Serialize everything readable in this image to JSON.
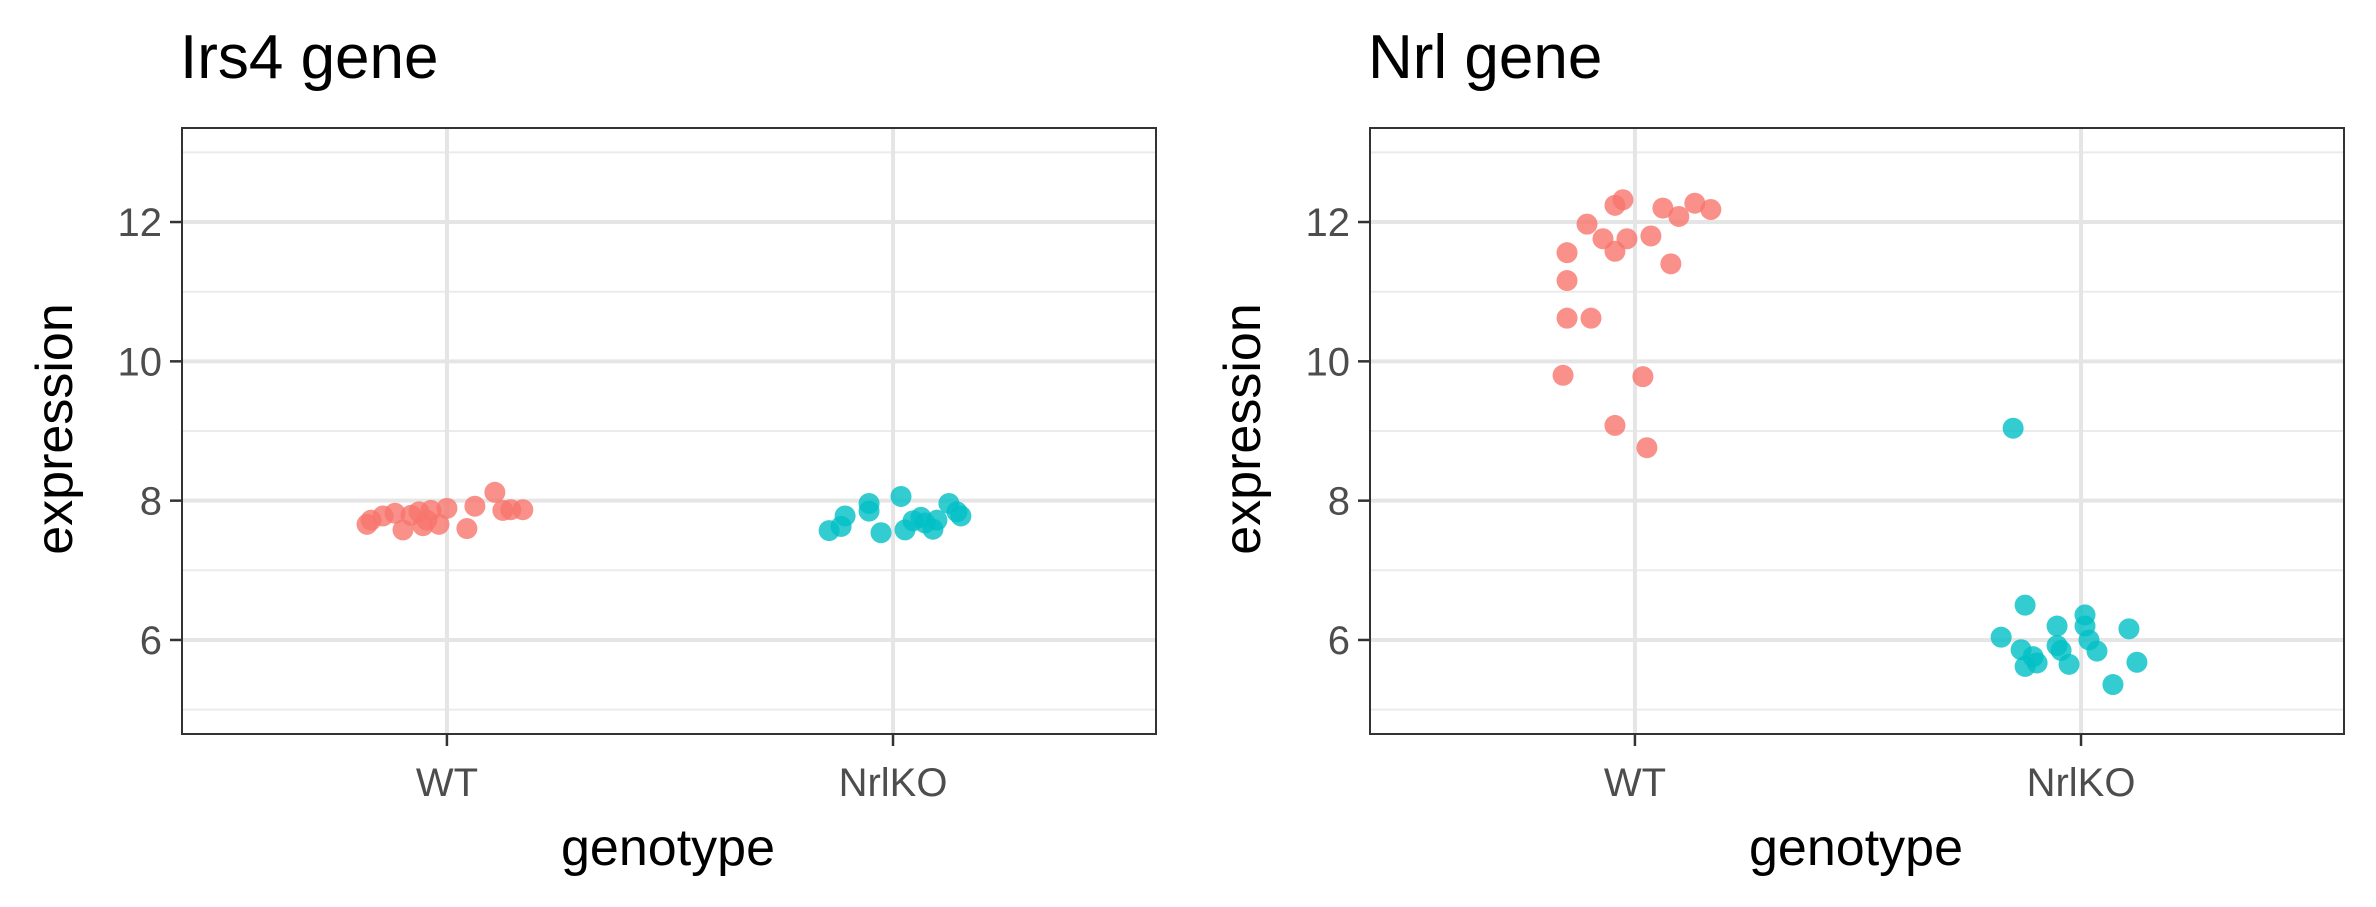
{
  "chart_data": [
    {
      "type": "scatter",
      "title": "Irs4 gene",
      "xlabel": "genotype",
      "ylabel": "expression",
      "categories": [
        "WT",
        "NrlKO"
      ],
      "ylim": [
        4.65,
        13.35
      ],
      "yticks": [
        6,
        8,
        10,
        12
      ],
      "grid": true,
      "series": [
        {
          "name": "WT",
          "color": "#F8766D",
          "x": [
            -0.2,
            -0.19,
            -0.16,
            -0.13,
            -0.11,
            -0.09,
            -0.07,
            -0.06,
            -0.05,
            -0.04,
            -0.02,
            0.0,
            0.05,
            0.07,
            0.12,
            0.14,
            0.16,
            0.19
          ],
          "values": [
            7.66,
            7.72,
            7.78,
            7.82,
            7.58,
            7.79,
            7.84,
            7.64,
            7.72,
            7.86,
            7.66,
            7.89,
            7.6,
            7.92,
            8.12,
            7.86,
            7.87,
            7.87
          ]
        },
        {
          "name": "NrlKO",
          "color": "#00BFC4",
          "x": [
            -0.16,
            -0.13,
            -0.12,
            -0.06,
            -0.06,
            -0.03,
            0.02,
            0.03,
            0.05,
            0.07,
            0.08,
            0.1,
            0.11,
            0.14,
            0.16,
            0.17
          ],
          "values": [
            7.57,
            7.63,
            7.78,
            7.85,
            7.96,
            7.54,
            8.06,
            7.58,
            7.71,
            7.76,
            7.68,
            7.59,
            7.72,
            7.96,
            7.84,
            7.78
          ]
        }
      ]
    },
    {
      "type": "scatter",
      "title": "Nrl gene",
      "xlabel": "genotype",
      "ylabel": "expression",
      "categories": [
        "WT",
        "NrlKO"
      ],
      "ylim": [
        4.65,
        13.35
      ],
      "yticks": [
        6,
        8,
        10,
        12
      ],
      "grid": true,
      "series": [
        {
          "name": "WT",
          "color": "#F8766D",
          "x": [
            -0.18,
            -0.17,
            -0.17,
            -0.17,
            -0.12,
            -0.11,
            -0.08,
            -0.05,
            -0.05,
            -0.05,
            -0.03,
            -0.02,
            0.02,
            0.03,
            0.04,
            0.07,
            0.09,
            0.11,
            0.15,
            0.19
          ],
          "values": [
            9.8,
            11.56,
            11.16,
            10.62,
            11.97,
            10.62,
            11.76,
            12.24,
            11.58,
            9.08,
            12.32,
            11.76,
            9.78,
            8.76,
            11.8,
            12.2,
            11.4,
            12.08,
            12.27,
            12.18
          ],
          "values_note": "approximate"
        },
        {
          "name": "NrlKO",
          "color": "#00BFC4",
          "x": [
            -0.2,
            -0.17,
            -0.15,
            -0.14,
            -0.14,
            -0.12,
            -0.11,
            -0.06,
            -0.06,
            -0.05,
            -0.03,
            0.01,
            0.01,
            0.02,
            0.04,
            0.08,
            0.12,
            0.14
          ],
          "values": [
            6.04,
            9.04,
            5.86,
            6.5,
            5.62,
            5.76,
            5.67,
            6.2,
            5.92,
            5.85,
            5.65,
            6.36,
            6.2,
            6.0,
            5.84,
            5.36,
            6.16,
            5.68
          ]
        }
      ]
    }
  ]
}
